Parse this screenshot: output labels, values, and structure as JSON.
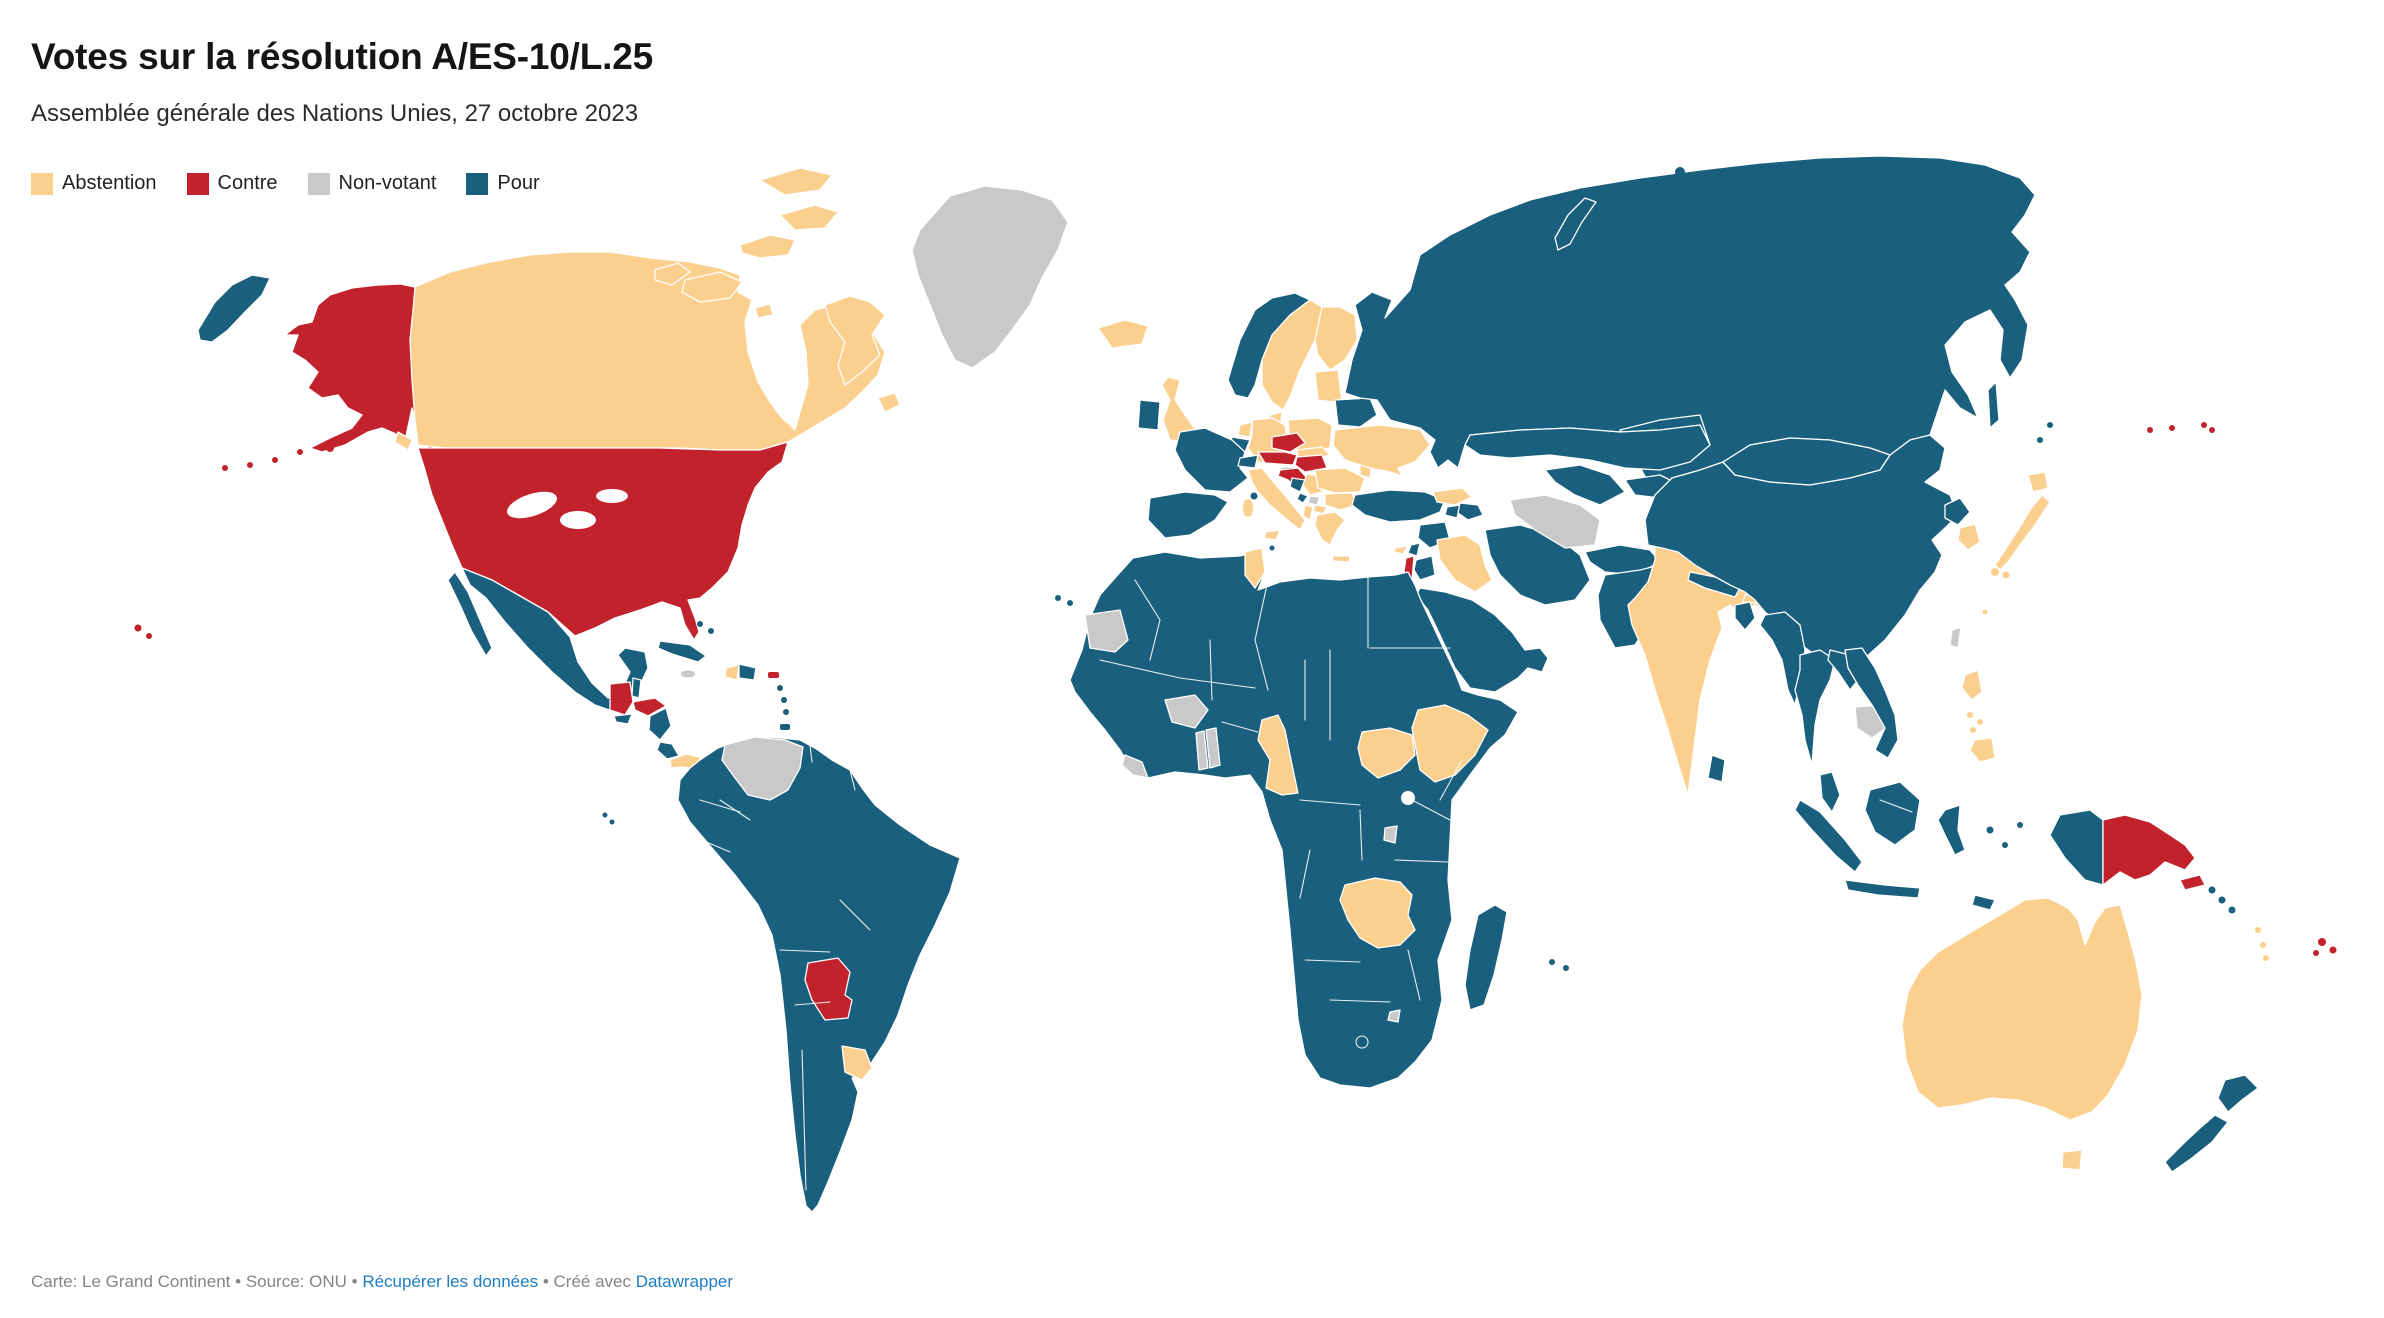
{
  "header": {
    "title": "Votes sur la résolution A/ES-10/L.25",
    "subtitle": "Assemblée générale des Nations Unies, 27 octobre 2023"
  },
  "legend": {
    "items": [
      {
        "key": "abstention",
        "label": "Abstention",
        "color": "#FBCF8D"
      },
      {
        "key": "contre",
        "label": "Contre",
        "color": "#C2222B"
      },
      {
        "key": "non_votant",
        "label": "Non-votant",
        "color": "#C9C9C9"
      },
      {
        "key": "pour",
        "label": "Pour",
        "color": "#1A5F7D"
      }
    ]
  },
  "footer": {
    "map_credit": "Carte: Le Grand Continent",
    "bullet1": " • ",
    "source": "Source: ONU",
    "bullet2": " • ",
    "data_link": "Récupérer les données",
    "bullet3": " • ",
    "created": "Créé avec ",
    "tool_link": "Datawrapper",
    "link_color": "#1E7CC0"
  },
  "map": {
    "ocean": "#FFFFFF",
    "border": "#FFFFFF",
    "votes": {
      "canada": "abstention",
      "canada_arctic1": "abstention",
      "canada_arctic2": "abstention",
      "canada_arctic3": "abstention",
      "canada_arctic4": "abstention",
      "canada_arctic5": "abstention",
      "canada_arctic6": "abstention",
      "baffin": "abstention",
      "southampton": "abstention",
      "newfoundland": "abstention",
      "vancouver_island": "abstention",
      "greenland": "non_votant",
      "iceland": "abstention",
      "alaska": "contre",
      "aleutians": "contre",
      "usa": "contre",
      "hawaii": "contre",
      "puerto_rico": "contre",
      "chukotka_wrap": "pour",
      "mexico": "pour",
      "baja": "pour",
      "guatemala": "contre",
      "belize": "pour",
      "honduras": "contre",
      "el_salvador": "pour",
      "nicaragua": "pour",
      "costa_rica": "pour",
      "panama": "abstention",
      "cuba": "pour",
      "jamaica": "non_votant",
      "haiti": "abstention",
      "dominican_republic": "pour",
      "bahamas": "pour",
      "antilles": "pour",
      "trinidad": "pour",
      "galapagos": "pour",
      "south_america": "pour",
      "venezuela": "non_votant",
      "paraguay": "contre",
      "uruguay": "abstention",
      "uk": "abstention",
      "ireland": "pour",
      "norway": "pour",
      "sweden": "abstention",
      "finland": "abstention",
      "baltics": "abstention",
      "denmark": "abstention",
      "netherlands": "abstention",
      "belgium": "pour",
      "germany": "abstention",
      "poland": "abstention",
      "france": "pour",
      "corsica": "pour",
      "iberia": "pour",
      "balearics": "pour",
      "canaries": "pour",
      "switzerland": "pour",
      "czechia": "contre",
      "slovakia": "abstention",
      "austria": "contre",
      "hungary": "contre",
      "italy": "abstention",
      "sicily": "abstention",
      "sardinia": "abstention",
      "malta": "pour",
      "slovenia": "pour",
      "croatia": "contre",
      "bosnia": "pour",
      "serbia": "abstention",
      "montenegro": "pour",
      "kosovo": "non_votant",
      "albania": "abstention",
      "north_macedonia": "abstention",
      "bulgaria": "abstention",
      "romania": "abstention",
      "moldova": "abstention",
      "greece": "abstention",
      "crete": "abstention",
      "ukraine": "abstention",
      "belarus": "pour",
      "russia": "pour",
      "novaya_zemlya": "pour",
      "russia_islands": "pour",
      "sakhalin": "pour",
      "kurils": "pour",
      "turkey": "pour",
      "cyprus": "abstention",
      "georgia": "abstention",
      "armenia": "pour",
      "azerbaijan": "pour",
      "syria": "pour",
      "lebanon": "pour",
      "israel": "contre",
      "jordan": "pour",
      "iraq": "abstention",
      "arabia": "pour",
      "iran": "pour",
      "turkmenistan": "non_votant",
      "uzbekistan": "pour",
      "kazakhstan": "pour",
      "kyrgyz_tajik": "pour",
      "afghanistan": "pour",
      "pakistan": "pour",
      "india": "abstention",
      "nepal": "pour",
      "bhutan": "abstention",
      "bangladesh": "pour",
      "sri_lanka": "pour",
      "china": "pour",
      "mongolia": "pour",
      "taiwan": "non_votant",
      "north_korea": "pour",
      "south_korea": "abstention",
      "japan_hokkaido": "abstention",
      "japan_honshu": "abstention",
      "japan_south": "abstention",
      "hainan": "pour",
      "myanmar": "pour",
      "thailand": "pour",
      "laos": "pour",
      "cambodia": "non_votant",
      "vietnam": "pour",
      "malaysia": "pour",
      "sumatra": "pour",
      "java": "pour",
      "borneo": "pour",
      "sulawesi": "pour",
      "moluccas": "pour",
      "timor": "pour",
      "west_papua": "pour",
      "png": "contre",
      "new_britain": "contre",
      "solomons": "pour",
      "vanuatu": "abstention",
      "micronesia": "contre",
      "marshall": "contre",
      "fiji": "contre",
      "philippines_luzon": "abstention",
      "philippines_visayas": "abstention",
      "philippines_mindanao": "abstention",
      "australia": "abstention",
      "tasmania": "abstention",
      "nz_north": "pour",
      "nz_south": "pour",
      "africa": "pour",
      "western_sahara": "non_votant",
      "tunisia": "abstention",
      "burkina_faso": "non_votant",
      "togo": "non_votant",
      "benin": "non_votant",
      "liberia": "non_votant",
      "cameroon": "abstention",
      "south_sudan": "abstention",
      "ethiopia": "abstention",
      "burundi": "non_votant",
      "zambia": "abstention",
      "eswatini": "non_votant",
      "madagascar": "pour",
      "mascarenes": "pour"
    }
  },
  "chart_data": {
    "type": "choropleth",
    "title": "Votes sur la résolution A/ES-10/L.25",
    "subtitle": "Assemblée générale des Nations Unies, 27 octobre 2023",
    "legend_entries": [
      "Abstention",
      "Contre",
      "Non-votant",
      "Pour"
    ],
    "legend_position": "top-left",
    "categories": {
      "Contre": [
        "États-Unis",
        "Israël",
        "Autriche",
        "Tchéquie",
        "Hongrie",
        "Croatie",
        "Guatemala",
        "Honduras",
        "Paraguay",
        "Papouasie-Nouvelle-Guinée",
        "Fidji",
        "Îles Marshall",
        "Micronésie",
        "Nauru",
        "Tonga"
      ],
      "Abstention": [
        "Canada",
        "Islande",
        "Royaume-Uni",
        "Suède",
        "Finlande",
        "Danemark",
        "Pays-Bas",
        "Allemagne",
        "Pologne",
        "Slovaquie",
        "Italie",
        "Grèce",
        "Serbie",
        "Albanie",
        "Macédoine du Nord",
        "Bulgarie",
        "Roumanie",
        "Moldavie",
        "Ukraine",
        "Estonie",
        "Lettonie",
        "Lituanie",
        "Géorgie",
        "Chypre",
        "Irak",
        "Tunisie",
        "Cameroun",
        "Soudan du Sud",
        "Éthiopie",
        "Zambie",
        "Inde",
        "Bhoutan",
        "Japon",
        "Corée du Sud",
        "Philippines",
        "Australie",
        "Vanuatu",
        "Panama",
        "Haïti",
        "Uruguay"
      ],
      "Non-votant": [
        "Venezuela",
        "Groenland",
        "Jamaïque",
        "Turkménistan",
        "Cambodge",
        "Taïwan",
        "Kosovo",
        "Sahara occidental",
        "Burkina Faso",
        "Togo",
        "Bénin",
        "Libéria",
        "Burundi",
        "Eswatini"
      ],
      "Pour": [
        "Russie",
        "Chine",
        "Mongolie",
        "France",
        "Espagne",
        "Portugal",
        "Irlande",
        "Norvège",
        "Belgique",
        "Suisse",
        "Slovénie",
        "Bosnie-Herzégovine",
        "Monténégro",
        "Biélorussie",
        "Turquie",
        "Syrie",
        "Liban",
        "Jordanie",
        "Arabie saoudite",
        "Yémen",
        "Oman",
        "Émirats arabes unis",
        "Iran",
        "Kazakhstan",
        "Ouzbékistan",
        "Kirghizistan",
        "Tadjikistan",
        "Afghanistan",
        "Pakistan",
        "Népal",
        "Bangladesh",
        "Sri Lanka",
        "Corée du Nord",
        "Birmanie",
        "Thaïlande",
        "Laos",
        "Viêt Nam",
        "Malaisie",
        "Indonésie",
        "Timor oriental",
        "Nouvelle-Zélande",
        "Îles Salomon",
        "Mexique",
        "Cuba",
        "République dominicaine",
        "Belize",
        "Salvador",
        "Nicaragua",
        "Costa Rica",
        "Colombie",
        "Équateur",
        "Pérou",
        "Brésil",
        "Bolivie",
        "Chili",
        "Argentine",
        "Guyana",
        "Suriname",
        "Maroc",
        "Algérie",
        "Libye",
        "Égypte",
        "Mauritanie",
        "Mali",
        "Niger",
        "Tchad",
        "Soudan",
        "Sénégal",
        "Guinée",
        "Ghana",
        "Nigeria",
        "Gabon",
        "RD Congo",
        "Angola",
        "Kenya",
        "Ouganda",
        "Tanzanie",
        "Mozambique",
        "Zimbabwe",
        "Botswana",
        "Namibie",
        "Afrique du Sud",
        "Madagascar",
        "Malawi",
        "Somalie"
      ]
    }
  }
}
